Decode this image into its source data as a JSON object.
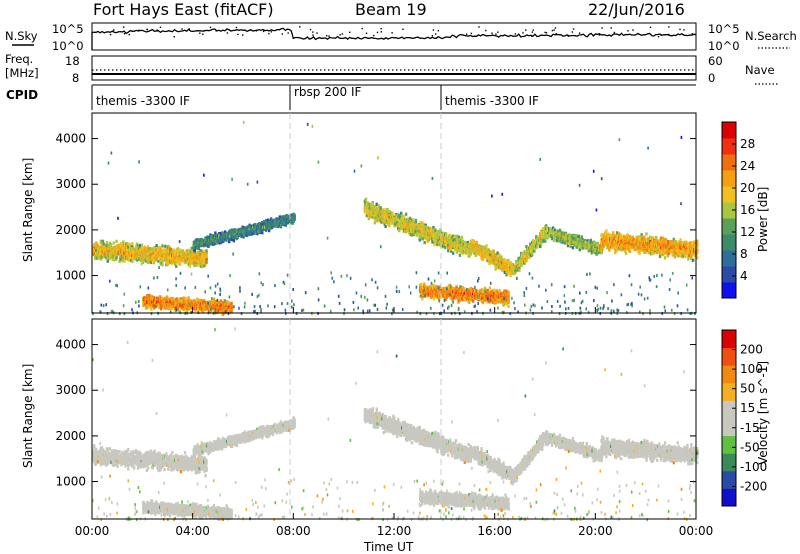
{
  "header": {
    "station": "Fort Hays East (fitACF)",
    "beam": "Beam 19",
    "date": "22/Jun/2016"
  },
  "panels": {
    "nsky": {
      "label": "N.Sky",
      "left_ticks": [
        "10^5",
        "10^0"
      ],
      "right_ticks": [
        "10^5",
        "10^0"
      ],
      "right_label": "N.Search"
    },
    "freq": {
      "label_line1": "Freq.",
      "label_line2": "[MHz]",
      "left_ticks": [
        "18",
        "8"
      ],
      "right_ticks": [
        "60",
        "0"
      ],
      "right_label": "Nave"
    },
    "cpid": {
      "label": "CPID",
      "segments": [
        {
          "name": "themis -3300 IF",
          "start_hour": 0,
          "end_hour": 8
        },
        {
          "name": "rbsp 200 IF",
          "start_hour": 8,
          "end_hour": 14
        },
        {
          "name": "themis -3300 IF",
          "start_hour": 14,
          "end_hour": 24
        }
      ]
    }
  },
  "colors": {
    "power_scale": [
      "#1010ee",
      "#2a4aa8",
      "#2e6e9a",
      "#3d8a6a",
      "#5aa05a",
      "#a8c640",
      "#f0c020",
      "#f4a010",
      "#f07010",
      "#ee3010",
      "#dd0000"
    ],
    "velocity_scale": [
      "#dd0000",
      "#ee5010",
      "#f08a10",
      "#f4b020",
      "#c8c8c0",
      "#c8c8c0",
      "#60c040",
      "#3a8a5a",
      "#2a4aa8",
      "#1010cc"
    ],
    "ground_scatter": "#c8c8c0"
  },
  "chart_data": [
    {
      "type": "heatmap",
      "title": "",
      "xlabel": "",
      "ylabel": "Slant Range [km]",
      "xlim": [
        0,
        24
      ],
      "ylim": [
        180,
        4560
      ],
      "yticks": [
        "1000",
        "2000",
        "3000",
        "4000"
      ],
      "colorbar": {
        "label": "Power [dB]",
        "ticks": [
          "28",
          "24",
          "20",
          "16",
          "12",
          "8",
          "4"
        ],
        "range": [
          0,
          30
        ]
      },
      "description_bands": [
        {
          "start_hour": 0.0,
          "end_hour": 4.5,
          "range_km_start": 1600,
          "range_km_end": 1400,
          "width_km": 250,
          "power_db": 20
        },
        {
          "start_hour": 2.0,
          "end_hour": 5.5,
          "range_km_start": 480,
          "range_km_end": 330,
          "width_km": 180,
          "power_db": 24
        },
        {
          "start_hour": 4.0,
          "end_hour": 8.0,
          "range_km_start": 1700,
          "range_km_end": 2300,
          "width_km": 150,
          "power_db": 10
        },
        {
          "start_hour": 10.8,
          "end_hour": 15.0,
          "range_km_start": 2500,
          "range_km_end": 1600,
          "width_km": 250,
          "power_db": 18
        },
        {
          "start_hour": 15.0,
          "end_hour": 16.7,
          "range_km_start": 1700,
          "range_km_end": 1150,
          "width_km": 220,
          "power_db": 20
        },
        {
          "start_hour": 16.7,
          "end_hour": 18.0,
          "range_km_start": 1150,
          "range_km_end": 2000,
          "width_km": 200,
          "power_db": 18
        },
        {
          "start_hour": 18.0,
          "end_hour": 20.2,
          "range_km_start": 2000,
          "range_km_end": 1600,
          "width_km": 180,
          "power_db": 16
        },
        {
          "start_hour": 20.2,
          "end_hour": 24.0,
          "range_km_start": 1800,
          "range_km_end": 1600,
          "width_km": 260,
          "power_db": 22
        },
        {
          "start_hour": 13.0,
          "end_hour": 16.5,
          "range_km_start": 700,
          "range_km_end": 550,
          "width_km": 200,
          "power_db": 24
        }
      ]
    },
    {
      "type": "heatmap",
      "title": "",
      "xlabel": "Time UT",
      "ylabel": "Slant Range [km]",
      "xlim": [
        0,
        24
      ],
      "ylim": [
        180,
        4560
      ],
      "xticks": [
        "00:00",
        "04:00",
        "08:00",
        "12:00",
        "16:00",
        "20:00",
        "00:00"
      ],
      "yticks": [
        "1000",
        "2000",
        "3000",
        "4000"
      ],
      "colorbar": {
        "label": "Velocity [m s^-1]",
        "ticks": [
          "200",
          "100",
          "50",
          "15",
          "-15",
          "-50",
          "-100",
          "-200"
        ],
        "range": [
          -250,
          250
        ]
      },
      "description_bands": [
        {
          "start_hour": 0.0,
          "end_hour": 4.5,
          "range_km_start": 1600,
          "range_km_end": 1400,
          "width_km": 250,
          "velocity": 0
        },
        {
          "start_hour": 2.0,
          "end_hour": 5.5,
          "range_km_start": 480,
          "range_km_end": 330,
          "width_km": 180,
          "velocity": 30
        },
        {
          "start_hour": 4.0,
          "end_hour": 8.0,
          "range_km_start": 1700,
          "range_km_end": 2300,
          "width_km": 150,
          "velocity": 0
        },
        {
          "start_hour": 10.8,
          "end_hour": 15.0,
          "range_km_start": 2500,
          "range_km_end": 1600,
          "width_km": 250,
          "velocity": 0
        },
        {
          "start_hour": 15.0,
          "end_hour": 16.7,
          "range_km_start": 1700,
          "range_km_end": 1150,
          "width_km": 220,
          "velocity": 0
        },
        {
          "start_hour": 16.7,
          "end_hour": 18.0,
          "range_km_start": 1150,
          "range_km_end": 2000,
          "width_km": 200,
          "velocity": 0
        },
        {
          "start_hour": 18.0,
          "end_hour": 20.2,
          "range_km_start": 2000,
          "range_km_end": 1600,
          "width_km": 180,
          "velocity": 0
        },
        {
          "start_hour": 20.2,
          "end_hour": 24.0,
          "range_km_start": 1800,
          "range_km_end": 1600,
          "width_km": 260,
          "velocity": 0
        },
        {
          "start_hour": 13.0,
          "end_hour": 16.5,
          "range_km_start": 700,
          "range_km_end": 550,
          "width_km": 200,
          "velocity": 0
        }
      ]
    }
  ]
}
